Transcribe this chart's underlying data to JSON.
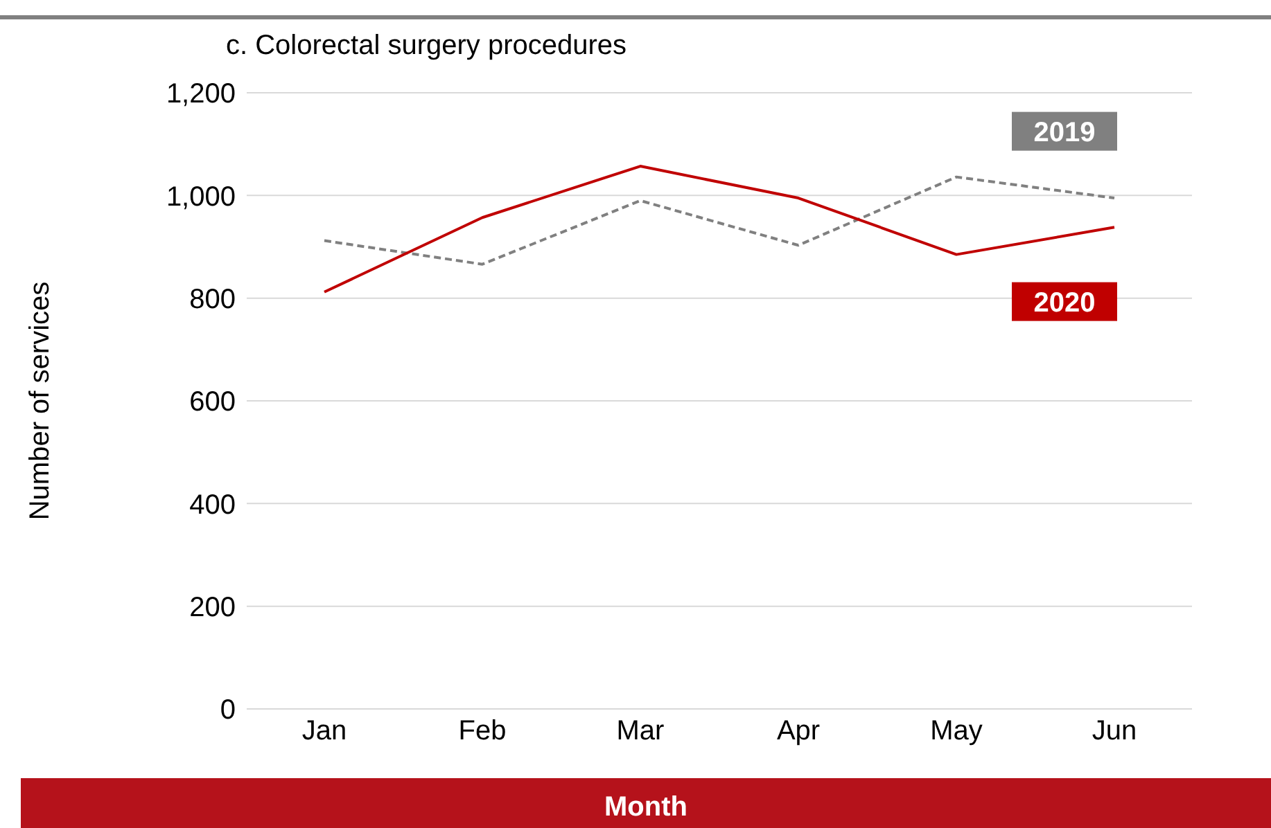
{
  "chart_data": {
    "type": "line",
    "title": "c. Colorectal surgery procedures",
    "xlabel": "Month",
    "ylabel": "Number of services",
    "categories": [
      "Jan",
      "Feb",
      "Mar",
      "Apr",
      "May",
      "Jun"
    ],
    "series": [
      {
        "name": "2019",
        "color": "#808080",
        "line_style": "dashed",
        "values": [
          912,
          866,
          990,
          903,
          1036,
          995
        ]
      },
      {
        "name": "2020",
        "color": "#c00000",
        "line_style": "solid",
        "values": [
          812,
          957,
          1057,
          995,
          885,
          938
        ]
      }
    ],
    "ylim": [
      0,
      1200
    ],
    "yticks": [
      {
        "value": 0,
        "label": "0"
      },
      {
        "value": 200,
        "label": "200"
      },
      {
        "value": 400,
        "label": "400"
      },
      {
        "value": 600,
        "label": "600"
      },
      {
        "value": 800,
        "label": "800"
      },
      {
        "value": 1000,
        "label": "1,000"
      },
      {
        "value": 1200,
        "label": "1,200"
      }
    ],
    "grid": "y",
    "marker": "none"
  }
}
